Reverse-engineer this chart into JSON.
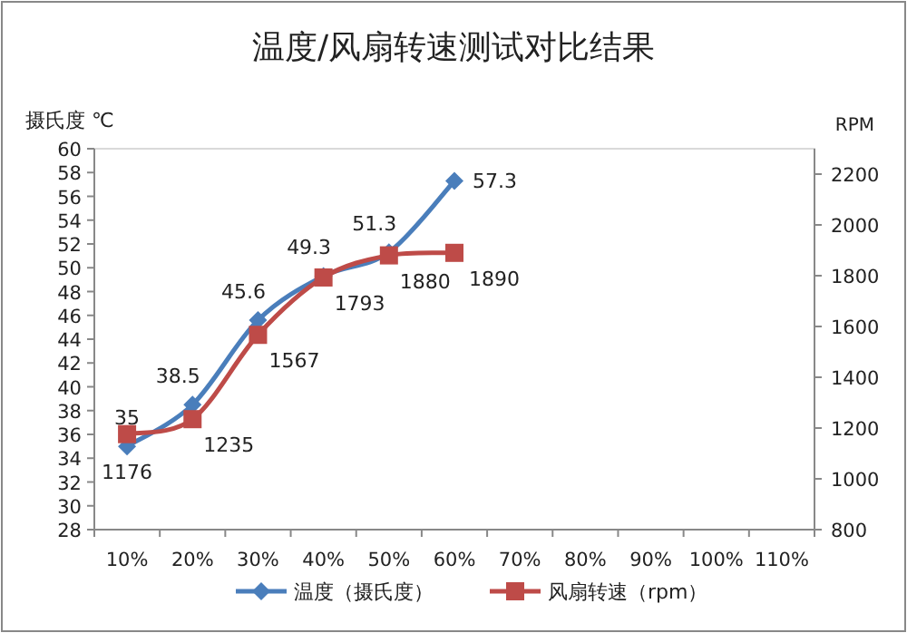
{
  "chart_data": {
    "type": "line",
    "title": "温度/风扇转速测试对比结果",
    "ylabel": "摄氏度 ℃",
    "y2label": "RPM",
    "categories": [
      "10%",
      "20%",
      "30%",
      "40%",
      "50%",
      "60%",
      "70%",
      "80%",
      "90%",
      "100%",
      "110%"
    ],
    "series": [
      {
        "name": "温度（摄氏度）",
        "color": "#4a7ebb",
        "marker": "diamond",
        "values": [
          35,
          38.5,
          45.6,
          49.3,
          51.3,
          57.3,
          null,
          null,
          null,
          null,
          null
        ]
      },
      {
        "name": "风扇转速（rpm）",
        "color": "#be4b48",
        "marker": "square",
        "axis": "y2",
        "values": [
          1176,
          1235,
          1567,
          1793,
          1880,
          1890,
          null,
          null,
          null,
          null,
          null
        ]
      }
    ],
    "ylim": [
      28,
      60
    ],
    "yticks": [
      28,
      30,
      32,
      34,
      36,
      38,
      40,
      42,
      44,
      46,
      48,
      50,
      52,
      54,
      56,
      58,
      60
    ],
    "y2lim": [
      800,
      2300
    ],
    "y2ticks": [
      800,
      1000,
      1200,
      1400,
      1600,
      1800,
      2000,
      2200
    ],
    "data_labels": true,
    "legend": "bottom",
    "grid": false
  }
}
